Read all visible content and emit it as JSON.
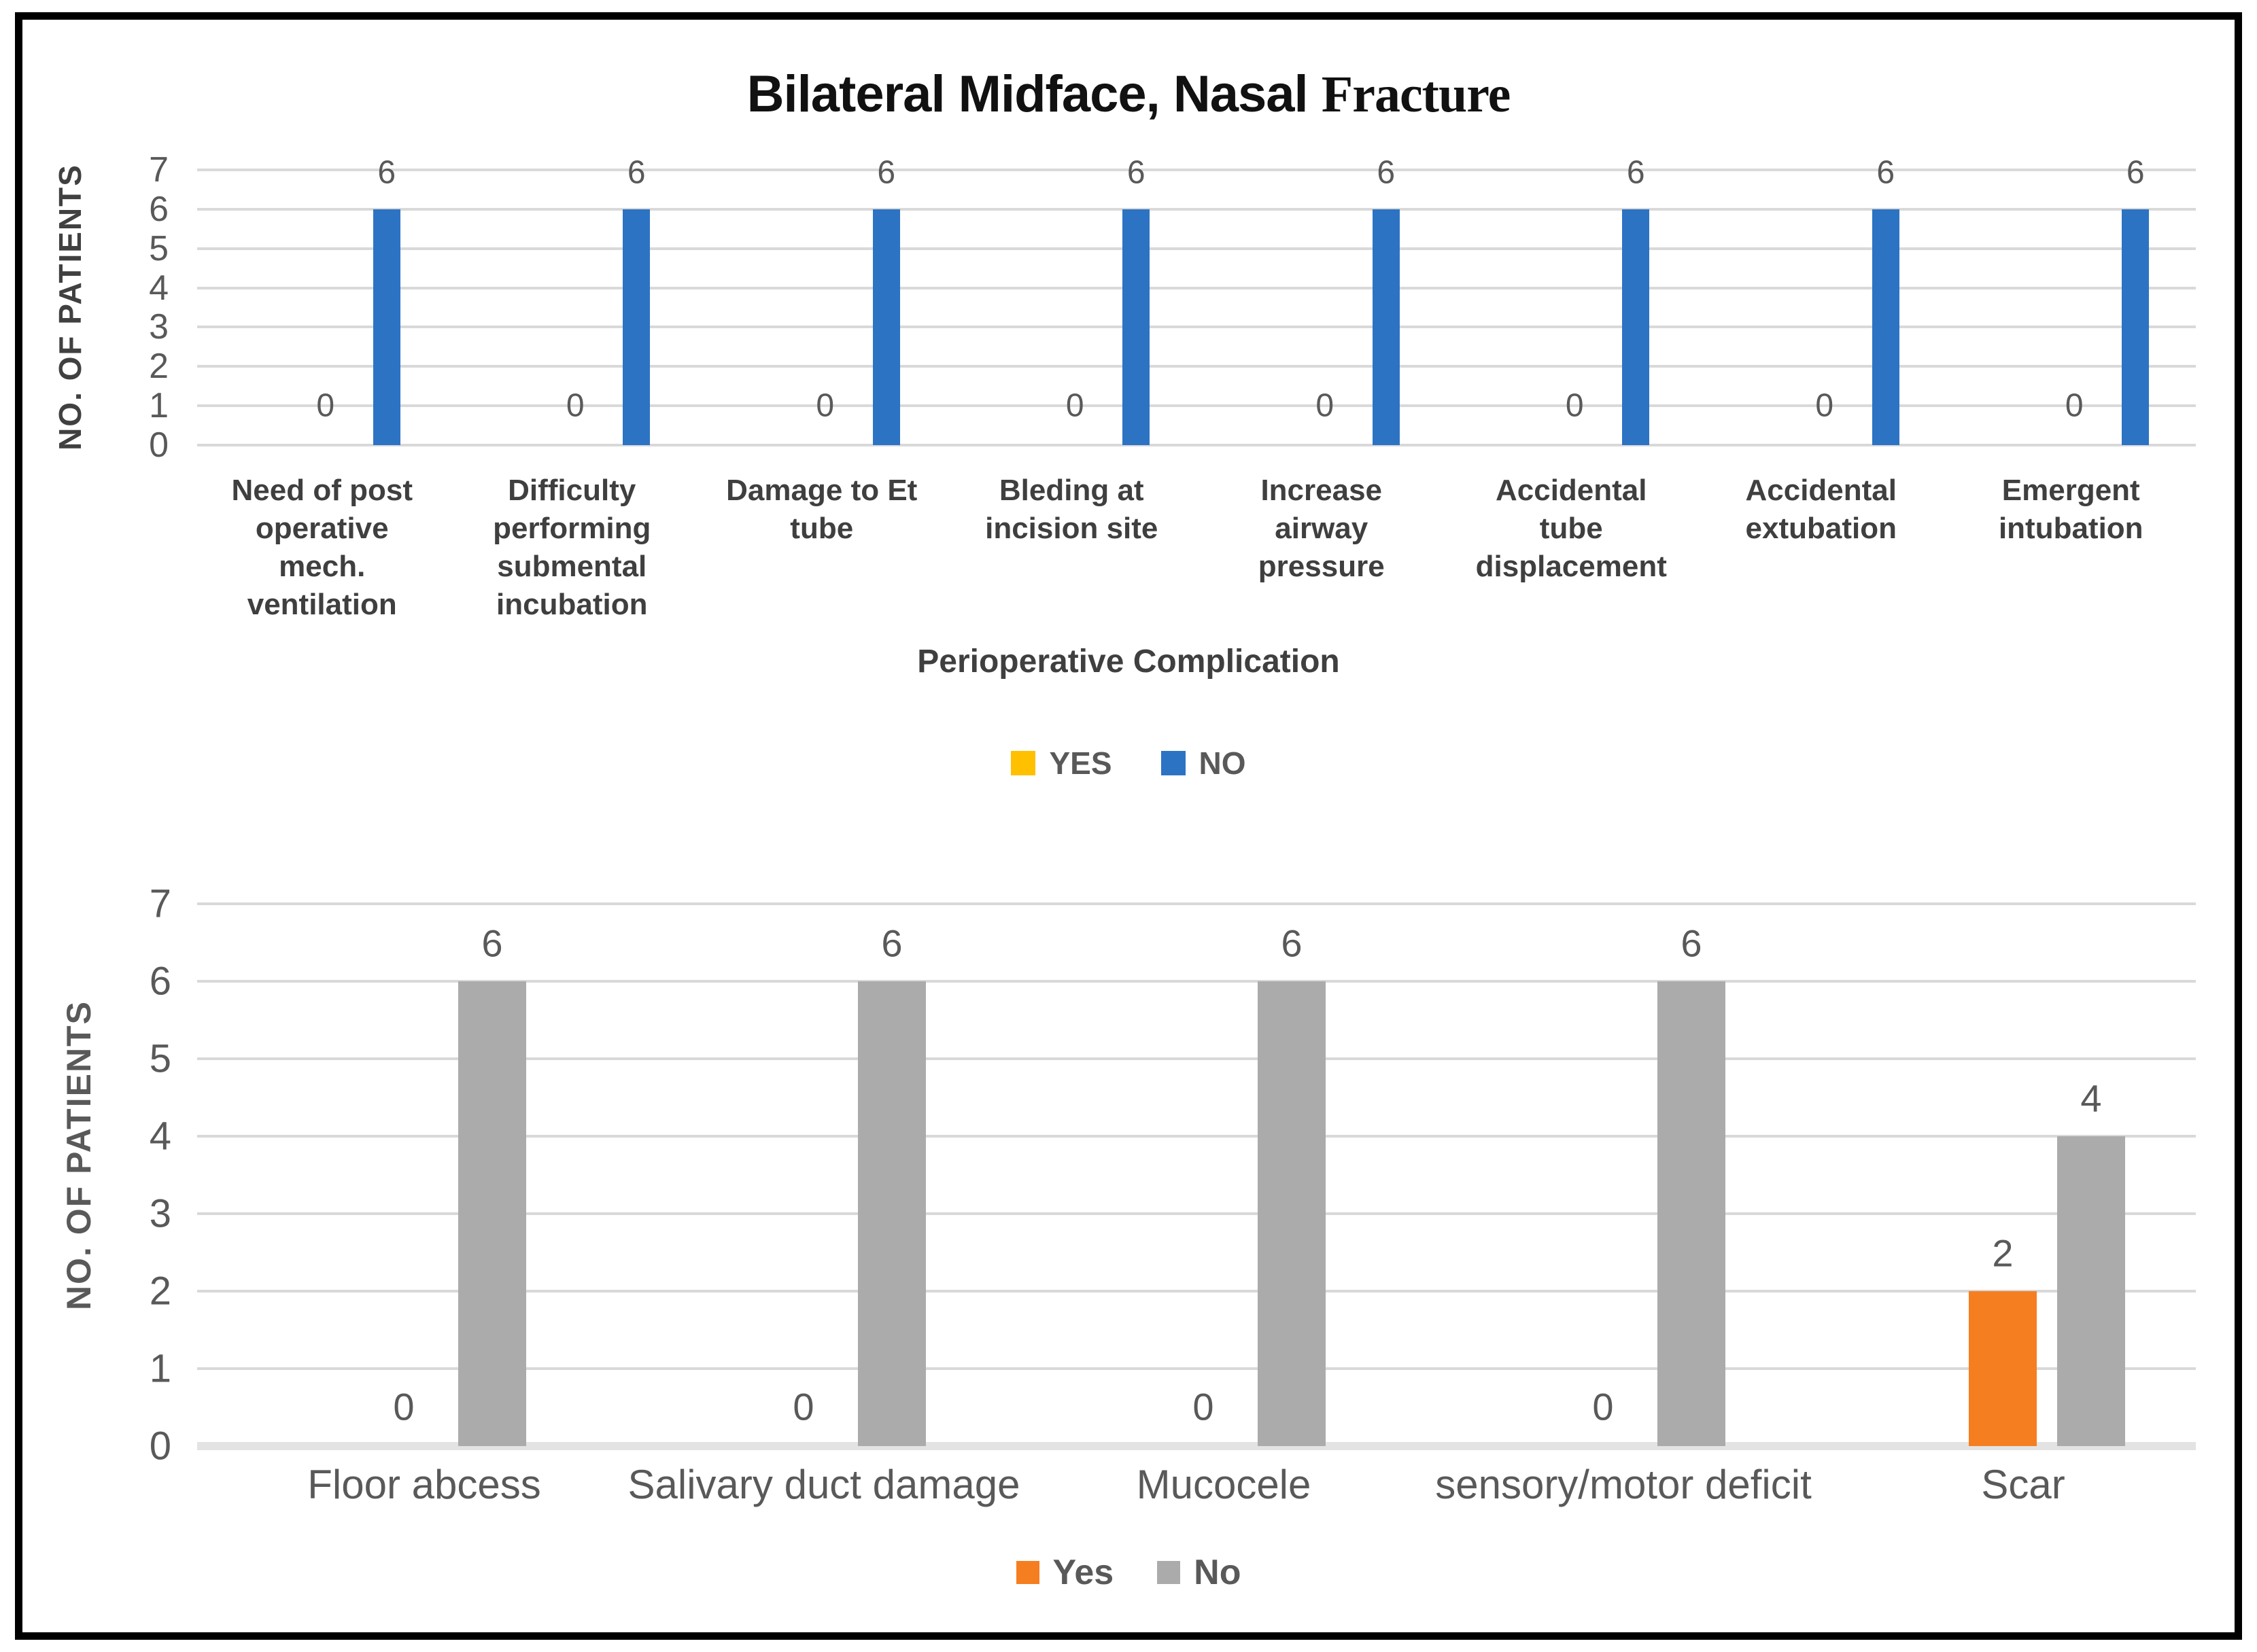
{
  "figure": {
    "border_color": "#000000",
    "background": "#ffffff"
  },
  "chart_data": [
    {
      "type": "bar",
      "title": "Bilateral Midface, Nasal Fracture",
      "title_parts": {
        "sans": "Bilateral Midface, Nasal ",
        "serif": "Fracture"
      },
      "xlabel": "Perioperative Complication",
      "ylabel": "NO. OF PATIENTS",
      "ylim": [
        0,
        7
      ],
      "yticks": [
        0,
        1,
        2,
        3,
        4,
        5,
        6,
        7
      ],
      "grid": true,
      "legend_position": "bottom",
      "categories": [
        "Need of post operative mech. ventilation",
        "Difficulty performing submental incubation",
        "Damage to Et tube",
        "Bleding at incision site",
        "Increase airway pressure",
        "Accidental tube displacement",
        "Accidental extubation",
        "Emergent intubation"
      ],
      "series": [
        {
          "name": "YES",
          "color": "#FFC000",
          "values": [
            0,
            0,
            0,
            0,
            0,
            0,
            0,
            0
          ]
        },
        {
          "name": "NO",
          "color": "#2C73C4",
          "values": [
            6,
            6,
            6,
            6,
            6,
            6,
            6,
            6
          ]
        }
      ]
    },
    {
      "type": "bar",
      "title": "",
      "xlabel": "",
      "ylabel": "NO. OF PATIENTS",
      "ylim": [
        0,
        7
      ],
      "yticks": [
        0,
        1,
        2,
        3,
        4,
        5,
        6,
        7
      ],
      "grid": true,
      "legend_position": "bottom",
      "categories": [
        "Floor abcess",
        "Salivary duct damage",
        "Mucocele",
        "sensory/motor deficit",
        "Scar"
      ],
      "series": [
        {
          "name": "Yes",
          "color": "#F57E20",
          "values": [
            0,
            0,
            0,
            0,
            2
          ]
        },
        {
          "name": "No",
          "color": "#ABABAB",
          "values": [
            6,
            6,
            6,
            6,
            4
          ]
        }
      ]
    }
  ]
}
